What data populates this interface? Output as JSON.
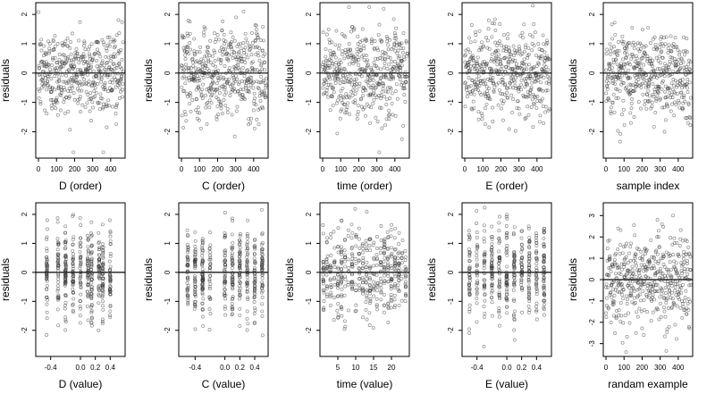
{
  "chart_data": [
    {
      "type": "scatter",
      "xlabel": "D (order)",
      "ylabel": "residuals",
      "xlim": [
        -15,
        480
      ],
      "ylim": [
        -2.9,
        2.4
      ],
      "xticks": [
        0,
        100,
        200,
        300,
        400
      ],
      "xtick_labels": [
        "0",
        "100",
        "200",
        "300",
        "400"
      ],
      "yticks": [
        -2,
        -1,
        0,
        1,
        2
      ],
      "ytick_labels": [
        "-2",
        "-1",
        "0",
        "1",
        "2"
      ],
      "zero_line": true,
      "pattern": "order",
      "points": []
    },
    {
      "type": "scatter",
      "xlabel": "C (order)",
      "ylabel": "residuals",
      "xlim": [
        -15,
        480
      ],
      "ylim": [
        -2.9,
        2.4
      ],
      "xticks": [
        0,
        100,
        200,
        300,
        400
      ],
      "xtick_labels": [
        "0",
        "100",
        "200",
        "300",
        "400"
      ],
      "yticks": [
        -2,
        -1,
        0,
        1,
        2
      ],
      "ytick_labels": [
        "-2",
        "-1",
        "0",
        "1",
        "2"
      ],
      "zero_line": true,
      "pattern": "order",
      "points": []
    },
    {
      "type": "scatter",
      "xlabel": "time (order)",
      "ylabel": "residuals",
      "xlim": [
        -15,
        480
      ],
      "ylim": [
        -2.9,
        2.4
      ],
      "xticks": [
        0,
        100,
        200,
        300,
        400
      ],
      "xtick_labels": [
        "0",
        "100",
        "200",
        "300",
        "400"
      ],
      "yticks": [
        -2,
        -1,
        0,
        1,
        2
      ],
      "ytick_labels": [
        "-2",
        "-1",
        "0",
        "1",
        "2"
      ],
      "zero_line": true,
      "pattern": "order",
      "points": []
    },
    {
      "type": "scatter",
      "xlabel": "E (order)",
      "ylabel": "residuals",
      "xlim": [
        -15,
        480
      ],
      "ylim": [
        -2.9,
        2.4
      ],
      "xticks": [
        0,
        100,
        200,
        300,
        400
      ],
      "xtick_labels": [
        "0",
        "100",
        "200",
        "300",
        "400"
      ],
      "yticks": [
        -2,
        -1,
        0,
        1,
        2
      ],
      "ytick_labels": [
        "-2",
        "-1",
        "0",
        "1",
        "2"
      ],
      "zero_line": true,
      "pattern": "order",
      "points": []
    },
    {
      "type": "scatter",
      "xlabel": "sample index",
      "ylabel": "residuals",
      "xlim": [
        -15,
        480
      ],
      "ylim": [
        -2.9,
        2.4
      ],
      "xticks": [
        0,
        100,
        200,
        300,
        400
      ],
      "xtick_labels": [
        "0",
        "100",
        "200",
        "300",
        "400"
      ],
      "yticks": [
        -2,
        -1,
        0,
        1,
        2
      ],
      "ytick_labels": [
        "-2",
        "-1",
        "0",
        "1",
        "2"
      ],
      "zero_line": true,
      "pattern": "order",
      "points": []
    },
    {
      "type": "scatter",
      "xlabel": "D (value)",
      "ylabel": "residuals",
      "xlim": [
        -0.6,
        0.6
      ],
      "ylim": [
        -2.9,
        2.4
      ],
      "xticks": [
        -0.4,
        0,
        0.2,
        0.4
      ],
      "xtick_labels": [
        "-0.4",
        "0.0",
        "0.2",
        "0.4"
      ],
      "yticks": [
        -2,
        -1,
        0,
        1,
        2
      ],
      "ytick_labels": [
        "-2",
        "-1",
        "0",
        "1",
        "2"
      ],
      "zero_line": true,
      "pattern": "value",
      "x_levels": [
        -0.45,
        -0.3,
        -0.2,
        -0.1,
        0,
        0.1,
        0.15,
        0.25,
        0.3,
        0.4
      ],
      "points": []
    },
    {
      "type": "scatter",
      "xlabel": "C (value)",
      "ylabel": "residuals",
      "xlim": [
        -0.62,
        0.58
      ],
      "ylim": [
        -2.9,
        2.4
      ],
      "xticks": [
        -0.4,
        0,
        0.2,
        0.4
      ],
      "xtick_labels": [
        "-0.4",
        "0.0",
        "0.2",
        "0.4"
      ],
      "yticks": [
        -2,
        -1,
        0,
        1,
        2
      ],
      "ytick_labels": [
        "-2",
        "-1",
        "0",
        "1",
        "2"
      ],
      "zero_line": true,
      "pattern": "value",
      "x_levels": [
        -0.5,
        -0.4,
        -0.3,
        -0.2,
        0,
        0.1,
        0.2,
        0.3,
        0.4,
        0.5
      ],
      "points": []
    },
    {
      "type": "scatter",
      "xlabel": "time (value)",
      "ylabel": "residuals",
      "xlim": [
        0,
        25
      ],
      "ylim": [
        -2.9,
        2.4
      ],
      "xticks": [
        5,
        10,
        15,
        20
      ],
      "xtick_labels": [
        "5",
        "10",
        "15",
        "20"
      ],
      "yticks": [
        -2,
        -1,
        0,
        1,
        2
      ],
      "ytick_labels": [
        "-2",
        "-1",
        "0",
        "1",
        "2"
      ],
      "zero_line": true,
      "pattern": "value",
      "x_levels": [
        1,
        2,
        3,
        4,
        5,
        6,
        7,
        8,
        9,
        10,
        11,
        12,
        13,
        14,
        15,
        16,
        17,
        18,
        19,
        20,
        21,
        22,
        23,
        24
      ],
      "points": []
    },
    {
      "type": "scatter",
      "xlabel": "E (value)",
      "ylabel": "residuals",
      "xlim": [
        -0.6,
        0.6
      ],
      "ylim": [
        -2.9,
        2.4
      ],
      "xticks": [
        -0.4,
        0,
        0.2,
        0.4
      ],
      "xtick_labels": [
        "-0.4",
        "0.0",
        "0.2",
        "0.4"
      ],
      "yticks": [
        -2,
        -1,
        0,
        1,
        2
      ],
      "ytick_labels": [
        "-2",
        "-1",
        "0",
        "1",
        "2"
      ],
      "zero_line": true,
      "pattern": "value",
      "x_levels": [
        -0.5,
        -0.4,
        -0.3,
        -0.2,
        -0.1,
        0,
        0.1,
        0.2,
        0.3,
        0.4,
        0.5
      ],
      "points": []
    },
    {
      "type": "scatter",
      "xlabel": "randam example",
      "ylabel": "residuals",
      "xlim": [
        -15,
        480
      ],
      "ylim": [
        -3.6,
        3.6
      ],
      "xticks": [
        0,
        100,
        200,
        300,
        400
      ],
      "xtick_labels": [
        "0",
        "100",
        "200",
        "300",
        "400"
      ],
      "yticks": [
        -3,
        -2,
        -1,
        0,
        1,
        2,
        3
      ],
      "ytick_labels": [
        "-3",
        "-2",
        "-1",
        "0",
        "1",
        "2",
        "3"
      ],
      "zero_line": true,
      "pattern": "random",
      "points": []
    }
  ]
}
